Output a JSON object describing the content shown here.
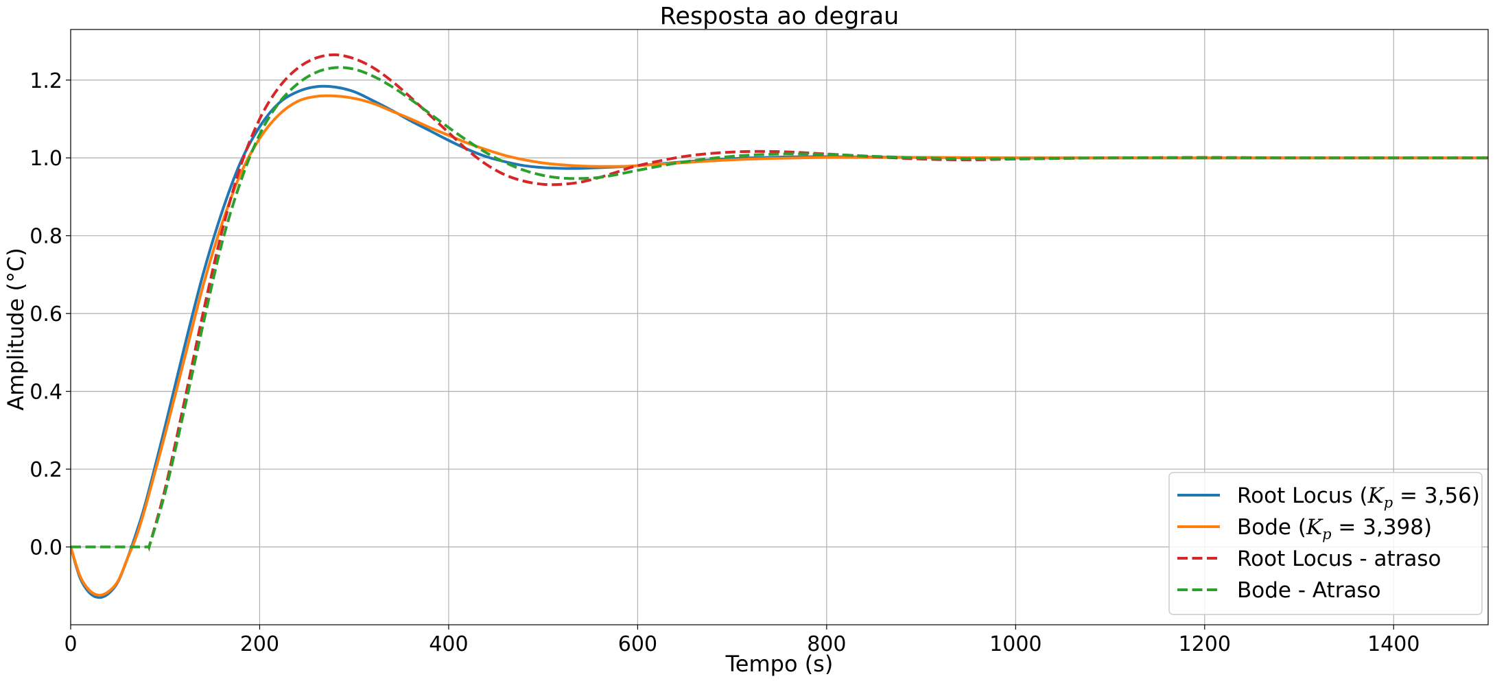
{
  "chart_data": {
    "type": "line",
    "title": "Resposta ao degrau",
    "xlabel": "Tempo (s)",
    "ylabel": "Amplitude (°C)",
    "xlim": [
      0,
      1500
    ],
    "ylim": [
      -0.2,
      1.33
    ],
    "x_ticks": [
      0,
      200,
      400,
      600,
      800,
      1000,
      1200,
      1400
    ],
    "y_ticks": [
      0.0,
      0.2,
      0.4,
      0.6,
      0.8,
      1.0,
      1.2
    ],
    "x_tick_labels": [
      "0",
      "200",
      "400",
      "600",
      "800",
      "1000",
      "1200",
      "1400"
    ],
    "y_tick_labels": [
      "0.0",
      "0.2",
      "0.4",
      "0.6",
      "0.8",
      "1.0",
      "1.2"
    ],
    "grid": true,
    "legend_position": "bottom-right",
    "series": [
      {
        "name": "Root Locus (K_p = 3,56)",
        "legend_main": "Root Locus (",
        "legend_k": "K",
        "legend_sub": "p",
        "legend_rest": " = 3,56)",
        "color": "#1f77b4",
        "dash": "solid",
        "x": [
          0,
          10,
          20,
          30,
          40,
          50,
          60,
          70,
          80,
          100,
          120,
          140,
          160,
          180,
          200,
          220,
          240,
          260,
          280,
          300,
          320,
          340,
          360,
          380,
          400,
          420,
          440,
          460,
          480,
          500,
          520,
          540,
          560,
          580,
          600,
          650,
          700,
          750,
          800,
          900,
          1000,
          1100,
          1200,
          1300,
          1400,
          1500
        ],
        "y": [
          0,
          -0.08,
          -0.118,
          -0.13,
          -0.12,
          -0.09,
          -0.03,
          0.04,
          0.12,
          0.31,
          0.51,
          0.7,
          0.86,
          0.99,
          1.08,
          1.14,
          1.17,
          1.183,
          1.182,
          1.17,
          1.147,
          1.122,
          1.095,
          1.07,
          1.045,
          1.022,
          1.003,
          0.99,
          0.98,
          0.975,
          0.973,
          0.973,
          0.975,
          0.977,
          0.98,
          0.99,
          0.998,
          1.002,
          1.003,
          1.001,
          1.0,
          1.0,
          1.0,
          1.0,
          1.0,
          1.0
        ]
      },
      {
        "name": "Bode (K_p = 3,398)",
        "legend_main": "Bode (",
        "legend_k": "K",
        "legend_sub": "p",
        "legend_rest": " = 3,398)",
        "color": "#ff7f0e",
        "dash": "solid",
        "x": [
          0,
          10,
          20,
          30,
          40,
          50,
          60,
          70,
          80,
          100,
          120,
          140,
          160,
          180,
          200,
          220,
          240,
          260,
          280,
          300,
          320,
          340,
          360,
          380,
          400,
          420,
          440,
          460,
          480,
          500,
          520,
          540,
          560,
          580,
          600,
          650,
          700,
          750,
          800,
          900,
          1000,
          1100,
          1200,
          1300,
          1400,
          1500
        ],
        "y": [
          0,
          -0.075,
          -0.112,
          -0.124,
          -0.115,
          -0.088,
          -0.03,
          0.03,
          0.11,
          0.29,
          0.48,
          0.67,
          0.83,
          0.96,
          1.05,
          1.11,
          1.145,
          1.158,
          1.159,
          1.153,
          1.14,
          1.12,
          1.1,
          1.078,
          1.058,
          1.038,
          1.021,
          1.006,
          0.995,
          0.987,
          0.982,
          0.979,
          0.978,
          0.978,
          0.98,
          0.988,
          0.995,
          0.999,
          1.001,
          1.001,
          1.0,
          1.0,
          1.0,
          1.0,
          1.0,
          1.0
        ]
      },
      {
        "name": "Root Locus - atraso",
        "legend_main": "Root Locus - atraso",
        "color": "#d62728",
        "dash": "dashed",
        "x": [
          0,
          83,
          100,
          120,
          140,
          160,
          180,
          200,
          220,
          240,
          260,
          280,
          300,
          320,
          340,
          360,
          380,
          400,
          420,
          440,
          460,
          480,
          500,
          520,
          540,
          560,
          580,
          600,
          650,
          700,
          750,
          800,
          850,
          900,
          950,
          1000,
          1100,
          1200,
          1300,
          1400,
          1500
        ],
        "y": [
          0,
          0,
          0.15,
          0.37,
          0.6,
          0.81,
          0.98,
          1.1,
          1.18,
          1.23,
          1.257,
          1.265,
          1.255,
          1.232,
          1.197,
          1.155,
          1.11,
          1.065,
          1.02,
          0.983,
          0.956,
          0.94,
          0.932,
          0.932,
          0.938,
          0.95,
          0.965,
          0.98,
          1.004,
          1.015,
          1.016,
          1.01,
          1.003,
          0.997,
          0.995,
          0.997,
          1.0,
          1.001,
          1.0,
          1.0,
          1.0
        ]
      },
      {
        "name": "Bode - Atraso",
        "legend_main": "Bode - Atraso",
        "color": "#2ca02c",
        "dash": "dashed",
        "x": [
          0,
          83,
          100,
          120,
          140,
          160,
          180,
          200,
          220,
          240,
          260,
          280,
          300,
          320,
          340,
          360,
          380,
          400,
          420,
          440,
          460,
          480,
          500,
          520,
          540,
          560,
          580,
          600,
          650,
          700,
          750,
          800,
          850,
          900,
          950,
          1000,
          1100,
          1200,
          1300,
          1400,
          1500
        ],
        "y": [
          0,
          0,
          0.14,
          0.35,
          0.57,
          0.78,
          0.94,
          1.06,
          1.14,
          1.19,
          1.22,
          1.232,
          1.228,
          1.21,
          1.183,
          1.15,
          1.114,
          1.078,
          1.044,
          1.013,
          0.988,
          0.968,
          0.955,
          0.948,
          0.947,
          0.95,
          0.958,
          0.968,
          0.99,
          1.004,
          1.01,
          1.009,
          1.004,
          1.0,
          0.998,
          0.998,
          1.0,
          1.0,
          1.0,
          1.0,
          1.0
        ]
      }
    ]
  }
}
